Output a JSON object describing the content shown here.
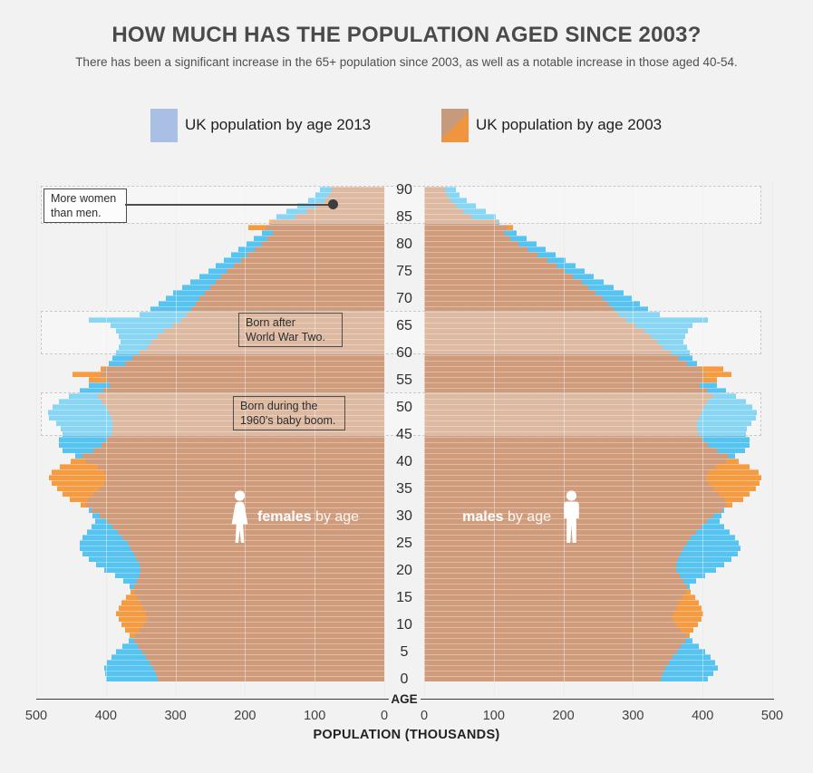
{
  "page": {
    "title": "HOW MUCH HAS THE POPULATION AGED SINCE 2003?",
    "subtitle": "There has been a significant increase in the 65+ population since 2003, as well as a notable increase in those aged 40-54."
  },
  "legend": [
    {
      "label": "UK population by age 2013",
      "swatch_color": "#a9bfe4"
    },
    {
      "label": "UK population by age 2003",
      "swatch_colors": [
        "#c59b7c",
        "#f0943f"
      ]
    }
  ],
  "colors": {
    "background": "#f2f2f2",
    "bar_2013_tip": "#56c3f0",
    "bar_2003_tip": "#f59b42",
    "bar_overlap": "#cf9b7a",
    "gridline": "#e0e0e0",
    "annotation_border": "#4d4d4d"
  },
  "chart_data": {
    "type": "bar",
    "subtype": "population-pyramid",
    "unit": "thousands",
    "age_min": 0,
    "age_max": 90,
    "age_tick_step": 5,
    "center_axis_label": "AGE",
    "x_axis_label": "POPULATION (THOUSANDS)",
    "female_ticks": [
      500,
      400,
      300,
      200,
      100,
      0
    ],
    "male_ticks": [
      0,
      100,
      200,
      300,
      400,
      500
    ],
    "x_max": 500,
    "series": {
      "females_2013": [
        400,
        401,
        402,
        398,
        392,
        385,
        376,
        367,
        358,
        351,
        345,
        341,
        342,
        346,
        350,
        355,
        360,
        366,
        375,
        387,
        402,
        414,
        424,
        433,
        438,
        437,
        433,
        427,
        421,
        416,
        419,
        424,
        429,
        426,
        418,
        409,
        402,
        399,
        402,
        412,
        428,
        444,
        462,
        468,
        468,
        462,
        465,
        471,
        482,
        483,
        477,
        467,
        453,
        438,
        424,
        400,
        408,
        402,
        396,
        390,
        386,
        382,
        379,
        381,
        385,
        393,
        425,
        352,
        336,
        324,
        314,
        303,
        290,
        278,
        265,
        253,
        242,
        231,
        220,
        209,
        198,
        188,
        176,
        170,
        162,
        155,
        140,
        125,
        110,
        99,
        92
      ],
      "females_2003": [
        325,
        328,
        332,
        337,
        342,
        348,
        354,
        360,
        366,
        372,
        377,
        381,
        385,
        382,
        377,
        371,
        365,
        359,
        355,
        351,
        350,
        352,
        356,
        360,
        364,
        369,
        376,
        383,
        391,
        399,
        409,
        421,
        436,
        452,
        462,
        470,
        478,
        482,
        478,
        466,
        450,
        434,
        418,
        406,
        398,
        392,
        390,
        390,
        392,
        396,
        400,
        406,
        412,
        404,
        394,
        424,
        448,
        408,
        372,
        362,
        352,
        340,
        334,
        326,
        316,
        304,
        292,
        284,
        277,
        271,
        265,
        258,
        250,
        242,
        234,
        226,
        216,
        206,
        196,
        186,
        176,
        168,
        160,
        195,
        165,
        128,
        112,
        98,
        86,
        79,
        76
      ],
      "males_2013": [
        408,
        416,
        422,
        418,
        412,
        404,
        395,
        386,
        377,
        369,
        362,
        357,
        358,
        362,
        366,
        371,
        376,
        382,
        391,
        404,
        419,
        431,
        441,
        451,
        455,
        452,
        446,
        439,
        431,
        425,
        427,
        431,
        435,
        431,
        423,
        415,
        409,
        405,
        409,
        419,
        433,
        447,
        461,
        468,
        467,
        462,
        464,
        470,
        476,
        478,
        472,
        462,
        448,
        434,
        421,
        398,
        404,
        398,
        392,
        386,
        381,
        377,
        373,
        375,
        379,
        386,
        408,
        338,
        322,
        310,
        298,
        286,
        272,
        258,
        244,
        231,
        217,
        203,
        189,
        175,
        161,
        147,
        133,
        118,
        108,
        103,
        88,
        74,
        61,
        51,
        45
      ],
      "males_2003": [
        340,
        342,
        346,
        351,
        357,
        363,
        369,
        375,
        381,
        387,
        393,
        398,
        401,
        398,
        394,
        389,
        383,
        377,
        372,
        367,
        362,
        362,
        364,
        368,
        372,
        377,
        383,
        390,
        398,
        406,
        416,
        428,
        443,
        458,
        468,
        476,
        482,
        485,
        480,
        468,
        452,
        436,
        420,
        408,
        400,
        394,
        392,
        392,
        394,
        398,
        402,
        408,
        414,
        406,
        396,
        420,
        442,
        430,
        378,
        366,
        354,
        342,
        334,
        326,
        316,
        304,
        290,
        280,
        272,
        264,
        256,
        246,
        236,
        226,
        214,
        202,
        190,
        177,
        163,
        149,
        136,
        124,
        116,
        128,
        106,
        68,
        56,
        46,
        38,
        32,
        30
      ]
    },
    "side_labels": {
      "female_bold": "females",
      "female_rest": " by age",
      "male_bold": "males",
      "male_rest": " by age"
    },
    "annotations": [
      {
        "text": "More women\nthan men."
      },
      {
        "text": "Born after\nWorld War Two."
      },
      {
        "text": "Born during the\n1960’s baby boom."
      }
    ],
    "highlight_bands": [
      {
        "age_from": 85,
        "age_to": 90
      },
      {
        "age_from": 61,
        "age_to": 67
      },
      {
        "age_from": 46,
        "age_to": 52
      }
    ]
  }
}
